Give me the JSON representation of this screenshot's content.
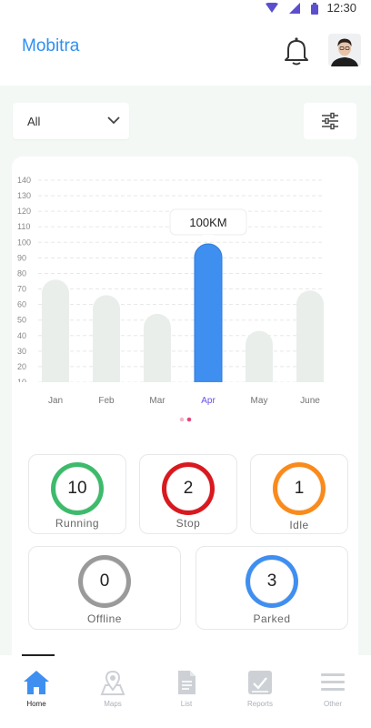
{
  "status_bar": {
    "time": "12:30"
  },
  "header": {
    "title": "Mobitra"
  },
  "filter": {
    "selected": "All"
  },
  "chart_data": {
    "type": "bar",
    "categories": [
      "Jan",
      "Feb",
      "Mar",
      "Apr",
      "May",
      "June"
    ],
    "values": [
      76,
      66,
      54,
      99,
      43,
      69
    ],
    "highlighted": "Apr",
    "highlight_label": "100KM",
    "yticks": [
      10,
      20,
      30,
      40,
      50,
      60,
      70,
      80,
      90,
      100,
      110,
      120,
      130,
      140
    ],
    "ylim": [
      10,
      140
    ],
    "grid": true,
    "colors": {
      "bar": "#e9eeeb",
      "highlight": "#3f8ff0",
      "highlight_label": "#7b68ee"
    }
  },
  "pager": {
    "count": 2,
    "active": 1
  },
  "stats": [
    {
      "id": "running",
      "value": "10",
      "label": "Running",
      "color": "#3dbb6b"
    },
    {
      "id": "stop",
      "value": "2",
      "label": "Stop",
      "color": "#d9191f"
    },
    {
      "id": "idle",
      "value": "1",
      "label": "Idle",
      "color": "#fa8a1a"
    },
    {
      "id": "offline",
      "value": "0",
      "label": "Offline",
      "color": "#9a9a9a"
    },
    {
      "id": "parked",
      "value": "3",
      "label": "Parked",
      "color": "#3f8ff0"
    }
  ],
  "tabs": [
    {
      "id": "home",
      "label": "Home",
      "icon": "home-icon",
      "active": true
    },
    {
      "id": "maps",
      "label": "Maps",
      "icon": "map-pin-icon",
      "active": false
    },
    {
      "id": "list",
      "label": "List",
      "icon": "document-icon",
      "active": false
    },
    {
      "id": "reports",
      "label": "Reports",
      "icon": "reports-icon",
      "active": false
    },
    {
      "id": "other",
      "label": "Other",
      "icon": "menu-icon",
      "active": false
    }
  ]
}
